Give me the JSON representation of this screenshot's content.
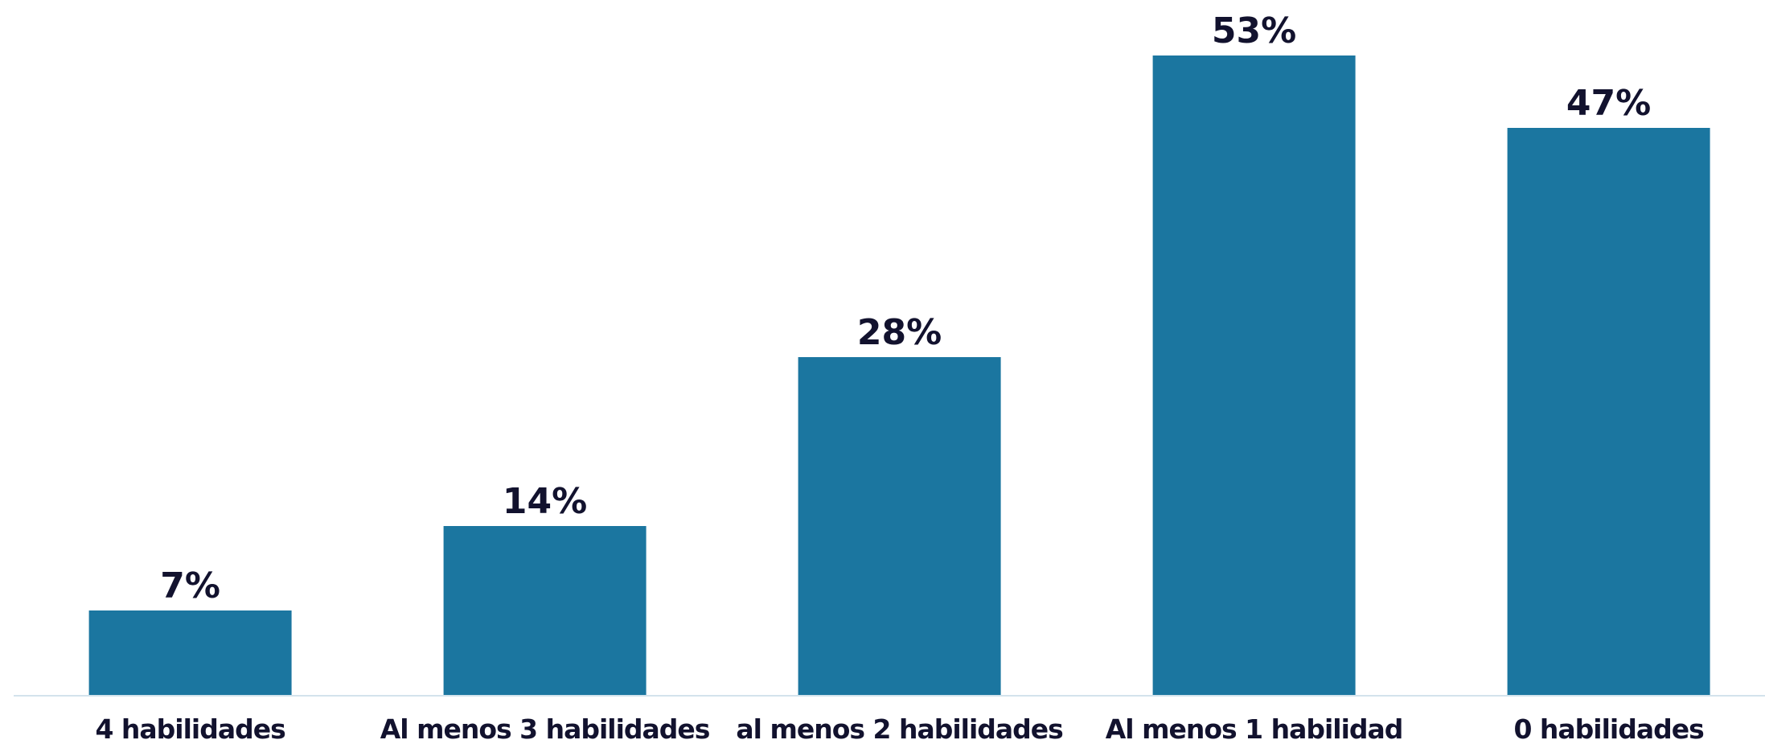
{
  "chart_data": {
    "type": "bar",
    "categories": [
      "4 habilidades",
      "Al menos 3 habilidades",
      "al menos 2 habilidades",
      "Al menos 1 habilidad",
      "0 habilidades"
    ],
    "values": [
      7,
      14,
      28,
      53,
      47
    ],
    "value_labels": [
      "7%",
      "14%",
      "28%",
      "53%",
      "47%"
    ],
    "color": "#1b76a0"
  }
}
